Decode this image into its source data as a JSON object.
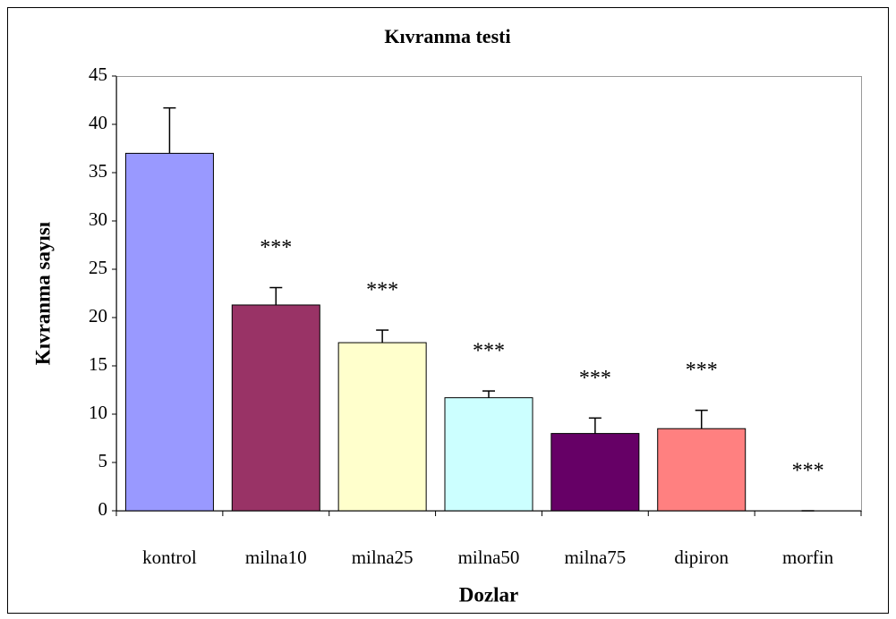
{
  "chart_data": {
    "type": "bar",
    "title": "Kıvranma testi",
    "x_label": "Dozlar",
    "y_label": "Kıvranma sayısı",
    "categories": [
      "kontrol",
      "milna10",
      "milna25",
      "milna50",
      "milna75",
      "dipiron",
      "morfin"
    ],
    "values": [
      37,
      21.3,
      17.4,
      11.7,
      8.0,
      8.5,
      0
    ],
    "errors": [
      4.7,
      1.8,
      1.3,
      0.7,
      1.6,
      1.9,
      0
    ],
    "annotations": [
      null,
      "***",
      "***",
      "***",
      "***",
      "***",
      "***"
    ],
    "colors": [
      "#9999ff",
      "#993366",
      "#ffffcc",
      "#ccffff",
      "#660066",
      "#ff8080",
      "#0066cc"
    ],
    "ylim": [
      0,
      45
    ],
    "yticks": [
      0,
      5,
      10,
      15,
      20,
      25,
      30,
      35,
      40,
      45
    ],
    "grid": false
  }
}
